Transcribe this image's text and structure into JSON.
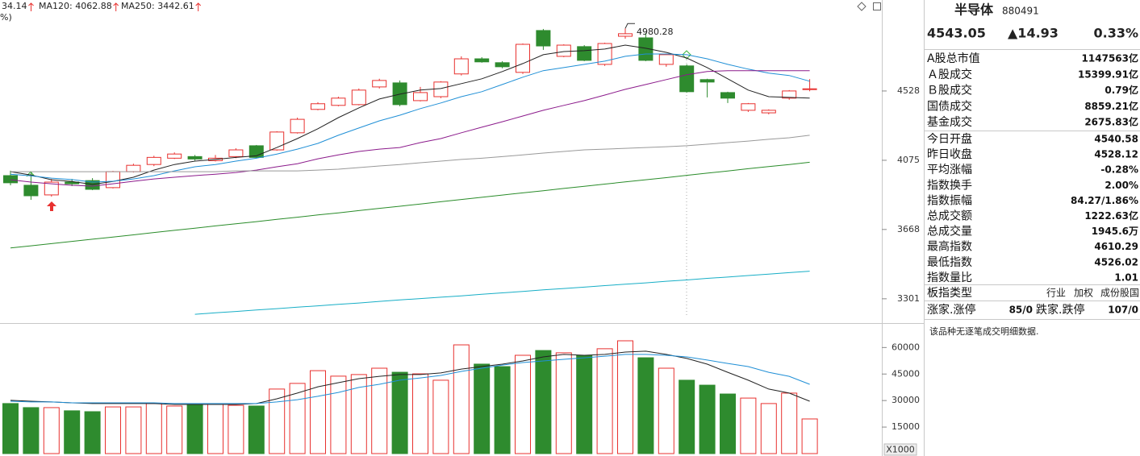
{
  "chart_data": [
    {
      "type": "candlestick",
      "legend": [
        {
          "text": "34.14",
          "color": "#555555"
        },
        {
          "text": "MA120: 4062.88",
          "color": "#2a8c2a"
        },
        {
          "text": "MA250: 3442.61",
          "color": "#17aec6"
        }
      ],
      "subtitle": "%)",
      "log_scale": true,
      "ylim": [
        3193,
        5200
      ],
      "yticks": [
        3301,
        3668,
        4075,
        4528
      ],
      "up_color": "#e8312f",
      "down_color": "#2e8b2e",
      "open": [
        3981,
        3923,
        3866,
        3942,
        3951,
        3909,
        4005,
        4049,
        4088,
        4098,
        4073,
        4098,
        4166,
        4140,
        4249,
        4403,
        4430,
        4435,
        4556,
        4584,
        4462,
        4489,
        4647,
        4755,
        4727,
        4658,
        4964,
        4773,
        4844,
        4715,
        4921,
        4909,
        4715,
        4704,
        4607,
        4517,
        4397,
        4380,
        4479,
        4540.58
      ],
      "high": [
        4011,
        4001,
        3961,
        3961,
        3966,
        4010,
        4054,
        4103,
        4124,
        4108,
        4108,
        4150,
        4171,
        4259,
        4348,
        4451,
        4489,
        4545,
        4613,
        4601,
        4556,
        4596,
        4773,
        4767,
        4738,
        4867,
        4976,
        4861,
        4855,
        4873,
        4980.28,
        4946,
        4790,
        4715,
        4613,
        4523,
        4446,
        4403,
        4534,
        4610.29
      ],
      "low": [
        3923,
        3837,
        3856,
        3918,
        3894,
        3904,
        4000,
        4039,
        4083,
        4073,
        4068,
        4088,
        4088,
        4135,
        4244,
        4397,
        4424,
        4430,
        4545,
        4424,
        4457,
        4479,
        4636,
        4727,
        4687,
        4647,
        4820,
        4767,
        4738,
        4704,
        4903,
        4738,
        4698,
        4517,
        4484,
        4446,
        4386,
        4370,
        4468,
        4526.02
      ],
      "close": [
        3938,
        3861,
        3942,
        3932,
        3899,
        4005,
        4044,
        4093,
        4114,
        4083,
        4088,
        4140,
        4093,
        4254,
        4337,
        4441,
        4479,
        4534,
        4601,
        4435,
        4517,
        4590,
        4755,
        4733,
        4698,
        4861,
        4849,
        4855,
        4744,
        4867,
        4940,
        4744,
        4785,
        4523,
        4590,
        4479,
        4441,
        4397,
        4528.12,
        4543.05
      ],
      "lines": [
        {
          "color": "#222222",
          "values": [
            4005,
            3985,
            3956,
            3946,
            3928,
            3946,
            3971,
            4015,
            4049,
            4070,
            4080,
            4093,
            4103,
            4155,
            4212,
            4275,
            4348,
            4413,
            4473,
            4506,
            4534,
            4545,
            4579,
            4613,
            4664,
            4721,
            4785,
            4808,
            4814,
            4826,
            4855,
            4832,
            4802,
            4761,
            4692,
            4613,
            4534,
            4489,
            4484,
            4479
          ]
        },
        {
          "color": "#1f8fd6",
          "values": [
            3990,
            3980,
            3966,
            3957,
            3942,
            3947,
            3961,
            3981,
            4010,
            4035,
            4049,
            4070,
            4088,
            4114,
            4145,
            4181,
            4233,
            4280,
            4327,
            4364,
            4408,
            4446,
            4489,
            4523,
            4573,
            4624,
            4670,
            4692,
            4715,
            4738,
            4773,
            4790,
            4790,
            4785,
            4755,
            4715,
            4681,
            4653,
            4636,
            4596
          ]
        },
        {
          "color": "#8b1a8b",
          "values": [
            3956,
            3942,
            3932,
            3923,
            3918,
            3932,
            3947,
            3961,
            3971,
            3981,
            3990,
            4000,
            4015,
            4035,
            4054,
            4084,
            4109,
            4130,
            4145,
            4155,
            4186,
            4212,
            4249,
            4285,
            4321,
            4359,
            4397,
            4430,
            4462,
            4500,
            4539,
            4573,
            4607,
            4641,
            4664,
            4670,
            4670,
            4670,
            4670,
            4670
          ]
        },
        {
          "color": "#999999",
          "values": [
            4005,
            4005,
            4005,
            4005,
            4005,
            4005,
            4005,
            4005,
            4005,
            4005,
            4005,
            4010,
            4010,
            4010,
            4010,
            4015,
            4020,
            4030,
            4040,
            4049,
            4060,
            4070,
            4080,
            4088,
            4098,
            4109,
            4120,
            4130,
            4140,
            4145,
            4150,
            4155,
            4160,
            4166,
            4176,
            4186,
            4196,
            4207,
            4217,
            4233
          ]
        },
        {
          "color": "#2a8c2a",
          "values": [
            3566,
            3578,
            3590,
            3602,
            3614,
            3626,
            3638,
            3651,
            3663,
            3675,
            3688,
            3700,
            3712,
            3725,
            3737,
            3750,
            3762,
            3775,
            3788,
            3800,
            3813,
            3826,
            3839,
            3852,
            3865,
            3878,
            3891,
            3904,
            3917,
            3930,
            3943,
            3956,
            3969,
            3983,
            3996,
            4009,
            4023,
            4036,
            4049,
            4062.88
          ]
        },
        {
          "color": "#17aec6",
          "values": [
            null,
            null,
            null,
            null,
            null,
            null,
            null,
            null,
            null,
            3224,
            3231,
            3238,
            3245,
            3252,
            3259,
            3266,
            3273,
            3280,
            3288,
            3295,
            3302,
            3309,
            3316,
            3324,
            3331,
            3338,
            3346,
            3353,
            3360,
            3368,
            3375,
            3382,
            3390,
            3397,
            3405,
            3412,
            3420,
            3427,
            3435,
            3442.61
          ]
        }
      ]
    },
    {
      "type": "bar",
      "unit_label": "X1000",
      "ylim": [
        0,
        72000
      ],
      "yticks": [
        15000,
        30000,
        45000,
        60000
      ],
      "values": [
        28300,
        26000,
        26000,
        24200,
        23700,
        26400,
        26400,
        28300,
        26900,
        27800,
        27800,
        27300,
        26900,
        36500,
        39700,
        46900,
        43800,
        44700,
        48300,
        46000,
        45100,
        41500,
        61500,
        50600,
        49200,
        55600,
        58300,
        57000,
        55600,
        59300,
        63800,
        54200,
        48300,
        41500,
        38700,
        33700,
        31400,
        28300,
        34200,
        19600
      ],
      "lines": [
        {
          "color": "#222222",
          "values": [
            30100,
            29600,
            29200,
            28700,
            28300,
            28300,
            28300,
            28300,
            27800,
            27800,
            27800,
            27800,
            28300,
            31000,
            34200,
            37800,
            40100,
            42400,
            43700,
            44700,
            44700,
            45600,
            47800,
            49200,
            50600,
            52400,
            54700,
            56100,
            55600,
            56100,
            57400,
            57900,
            56100,
            53800,
            50600,
            46000,
            41500,
            36500,
            34200,
            29600
          ]
        },
        {
          "color": "#1f8fd6",
          "values": [
            29600,
            29200,
            29200,
            28700,
            28700,
            28700,
            28700,
            28700,
            28300,
            28300,
            28300,
            28300,
            28300,
            29200,
            30500,
            32400,
            34600,
            37400,
            39200,
            41500,
            42800,
            44200,
            46500,
            48300,
            50100,
            51500,
            52400,
            53300,
            54200,
            55100,
            56100,
            56100,
            55600,
            54700,
            52900,
            51000,
            49200,
            46000,
            43700,
            39200
          ]
        }
      ]
    }
  ],
  "quote_panel": {
    "name": "半导体",
    "code": "880491",
    "price": "4543.05",
    "change": "▲14.93",
    "change_pct": "0.33%",
    "market_rows": [
      {
        "label": "A股总市值",
        "value": "1147563亿"
      },
      {
        "label": "Ａ股成交",
        "value": "15399.91亿"
      },
      {
        "label": "Ｂ股成交",
        "value": "0.79亿"
      },
      {
        "label": "国债成交",
        "value": "8859.21亿"
      },
      {
        "label": "基金成交",
        "value": "2675.83亿"
      }
    ],
    "index_rows": [
      {
        "label": "今日开盘",
        "value": "4540.58",
        "color": "#e8312f"
      },
      {
        "label": "昨日收盘",
        "value": "4528.12"
      },
      {
        "label": "平均涨幅",
        "value": "-0.28%",
        "color": "#1a9a1a"
      },
      {
        "label": "指数换手",
        "value": "2.00%"
      },
      {
        "label": "指数振幅",
        "value": "84.27/1.86%"
      },
      {
        "label": "总成交额",
        "value": "1222.63亿"
      },
      {
        "label": "总成交量",
        "value": "1945.6万"
      },
      {
        "label": "最高指数",
        "value": "4610.29",
        "color": "#e8312f"
      },
      {
        "label": "最低指数",
        "value": "4526.02",
        "color": "#1a9a1a"
      },
      {
        "label": "指数量比",
        "value": "1.01",
        "color": "#e8312f"
      }
    ],
    "sector_type": {
      "label": "板指类型",
      "options": [
        "行业",
        "加权",
        "成份股国"
      ]
    },
    "breadth": {
      "up_label": "涨家.涨停",
      "up_value": "85/0",
      "down_label": "跌家.跌停",
      "down_value": "107/0"
    },
    "note": "该品种无逐笔成交明细数据."
  }
}
